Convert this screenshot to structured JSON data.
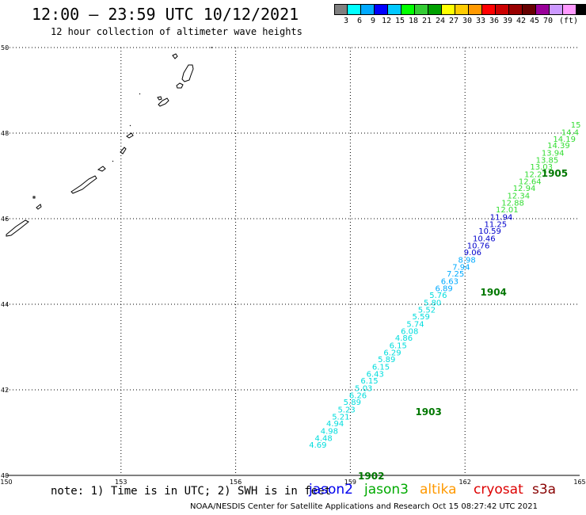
{
  "header": {
    "title": "12:00 – 23:59 UTC 10/12/2021",
    "subtitle": "12 hour collection of altimeter wave heights"
  },
  "legend": {
    "unit": "(ft)",
    "colors": [
      "#808080",
      "#00ffff",
      "#00aaff",
      "#0000ff",
      "#00c8ff",
      "#00ff00",
      "#33cc33",
      "#00a000",
      "#ffff00",
      "#ffcc00",
      "#ff9900",
      "#ff0000",
      "#cc0000",
      "#990000",
      "#660000",
      "#990099",
      "#cc99ff",
      "#ff99ff",
      "#000000"
    ],
    "ticks": [
      "3",
      "6",
      "9",
      "12",
      "15",
      "18",
      "21",
      "24",
      "27",
      "30",
      "33",
      "36",
      "39",
      "42",
      "45",
      "70"
    ]
  },
  "axes": {
    "lat_labels": [
      "50",
      "48",
      "46",
      "44",
      "42",
      "40"
    ],
    "lon_labels": [
      "150",
      "153",
      "156",
      "159",
      "162",
      "165"
    ]
  },
  "footer": {
    "note": "note: 1) Time is in UTC; 2) SWH is in feet",
    "satellites": [
      {
        "name": "jason2",
        "color": "#0000ee"
      },
      {
        "name": "jason3",
        "color": "#00aa00"
      },
      {
        "name": "altika",
        "color": "#ff9900"
      },
      {
        "name": "cryosat",
        "color": "#dd0000"
      },
      {
        "name": "s3a",
        "color": "#880000"
      }
    ],
    "credit": "NOAA/NESDIS Center for Satellite Applications and Research    Oct 15 08:27:42 UTC 2021"
  },
  "time_labels": [
    {
      "text": "1905",
      "lat": 47.07,
      "lon": 164.0
    },
    {
      "text": "1904",
      "lat": 44.3,
      "lon": 162.4
    },
    {
      "text": "1903",
      "lat": 41.5,
      "lon": 160.7
    },
    {
      "text": "1902",
      "lat": 40.0,
      "lon": 159.2
    }
  ],
  "wave_points": [
    {
      "lat": 48.2,
      "lon": 164.9,
      "v": "15",
      "c": "#33dd33"
    },
    {
      "lat": 48.03,
      "lon": 164.75,
      "v": "14.4",
      "c": "#33dd33"
    },
    {
      "lat": 47.87,
      "lon": 164.6,
      "v": "14.19",
      "c": "#33dd33"
    },
    {
      "lat": 47.72,
      "lon": 164.45,
      "v": "14.39",
      "c": "#33dd33"
    },
    {
      "lat": 47.55,
      "lon": 164.3,
      "v": "13.94",
      "c": "#33dd33"
    },
    {
      "lat": 47.38,
      "lon": 164.15,
      "v": "13.85",
      "c": "#33dd33"
    },
    {
      "lat": 47.22,
      "lon": 164.0,
      "v": "13.03",
      "c": "#33dd33"
    },
    {
      "lat": 47.05,
      "lon": 163.85,
      "v": "12.27",
      "c": "#33dd33"
    },
    {
      "lat": 46.88,
      "lon": 163.7,
      "v": "12.64",
      "c": "#33dd33"
    },
    {
      "lat": 46.72,
      "lon": 163.55,
      "v": "12.94",
      "c": "#33dd33"
    },
    {
      "lat": 46.55,
      "lon": 163.4,
      "v": "12.34",
      "c": "#33dd33"
    },
    {
      "lat": 46.38,
      "lon": 163.25,
      "v": "12.88",
      "c": "#33dd33"
    },
    {
      "lat": 46.22,
      "lon": 163.1,
      "v": "12.01",
      "c": "#33dd33"
    },
    {
      "lat": 46.05,
      "lon": 162.95,
      "v": "11.94",
      "c": "#0000cc"
    },
    {
      "lat": 45.88,
      "lon": 162.8,
      "v": "11.25",
      "c": "#0000cc"
    },
    {
      "lat": 45.72,
      "lon": 162.65,
      "v": "10.59",
      "c": "#0000cc"
    },
    {
      "lat": 45.55,
      "lon": 162.5,
      "v": "10.46",
      "c": "#0000cc"
    },
    {
      "lat": 45.38,
      "lon": 162.35,
      "v": "10.76",
      "c": "#0000cc"
    },
    {
      "lat": 45.22,
      "lon": 162.2,
      "v": "9.06",
      "c": "#0000cc"
    },
    {
      "lat": 45.05,
      "lon": 162.05,
      "v": "8.98",
      "c": "#00aaff"
    },
    {
      "lat": 44.88,
      "lon": 161.9,
      "v": "7.94",
      "c": "#00aaff"
    },
    {
      "lat": 44.72,
      "lon": 161.75,
      "v": "7.25",
      "c": "#00aaff"
    },
    {
      "lat": 44.55,
      "lon": 161.6,
      "v": "6.63",
      "c": "#00aaff"
    },
    {
      "lat": 44.38,
      "lon": 161.45,
      "v": "6.89",
      "c": "#00aaff"
    },
    {
      "lat": 44.22,
      "lon": 161.3,
      "v": "5.76",
      "c": "#00dddd"
    },
    {
      "lat": 44.05,
      "lon": 161.15,
      "v": "5.80",
      "c": "#00dddd"
    },
    {
      "lat": 43.88,
      "lon": 161.0,
      "v": "5.52",
      "c": "#00dddd"
    },
    {
      "lat": 43.72,
      "lon": 160.85,
      "v": "5.59",
      "c": "#00dddd"
    },
    {
      "lat": 43.55,
      "lon": 160.7,
      "v": "5.74",
      "c": "#00dddd"
    },
    {
      "lat": 43.38,
      "lon": 160.55,
      "v": "6.08",
      "c": "#00dddd"
    },
    {
      "lat": 43.22,
      "lon": 160.4,
      "v": "4.86",
      "c": "#00dddd"
    },
    {
      "lat": 43.05,
      "lon": 160.25,
      "v": "6.15",
      "c": "#00dddd"
    },
    {
      "lat": 42.88,
      "lon": 160.1,
      "v": "6.29",
      "c": "#00dddd"
    },
    {
      "lat": 42.72,
      "lon": 159.95,
      "v": "5.89",
      "c": "#00dddd"
    },
    {
      "lat": 42.55,
      "lon": 159.8,
      "v": "6.15",
      "c": "#00dddd"
    },
    {
      "lat": 42.38,
      "lon": 159.65,
      "v": "6.43",
      "c": "#00dddd"
    },
    {
      "lat": 42.22,
      "lon": 159.5,
      "v": "6.15",
      "c": "#00dddd"
    },
    {
      "lat": 42.05,
      "lon": 159.35,
      "v": "5.03",
      "c": "#00dddd"
    },
    {
      "lat": 41.88,
      "lon": 159.2,
      "v": "6.26",
      "c": "#00dddd"
    },
    {
      "lat": 41.72,
      "lon": 159.05,
      "v": "5.89",
      "c": "#00dddd"
    },
    {
      "lat": 41.55,
      "lon": 158.9,
      "v": "5.23",
      "c": "#00dddd"
    },
    {
      "lat": 41.38,
      "lon": 158.75,
      "v": "5.21",
      "c": "#00dddd"
    },
    {
      "lat": 41.22,
      "lon": 158.6,
      "v": "4.94",
      "c": "#00dddd"
    },
    {
      "lat": 41.05,
      "lon": 158.45,
      "v": "4.98",
      "c": "#00dddd"
    },
    {
      "lat": 40.88,
      "lon": 158.3,
      "v": "4.48",
      "c": "#00dddd"
    },
    {
      "lat": 40.72,
      "lon": 158.15,
      "v": "4.69",
      "c": "#00dddd"
    }
  ]
}
